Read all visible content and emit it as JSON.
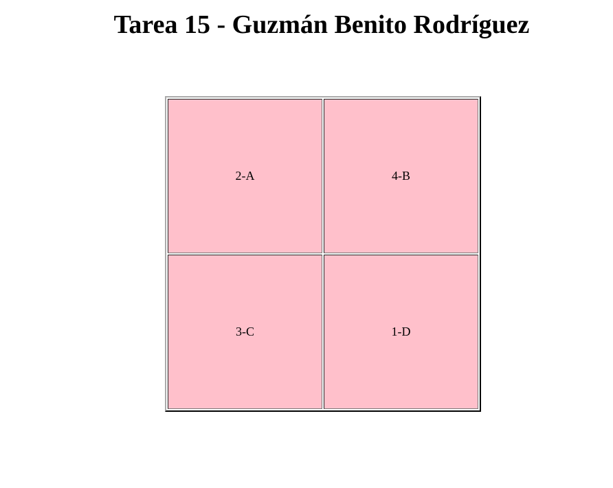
{
  "page": {
    "title": "Tarea 15 - Guzmán Benito Rodríguez"
  },
  "table": {
    "rows": [
      [
        "2-A",
        "4-B"
      ],
      [
        "3-C",
        "1-D"
      ]
    ],
    "cell_background": "#ffc0cb"
  }
}
